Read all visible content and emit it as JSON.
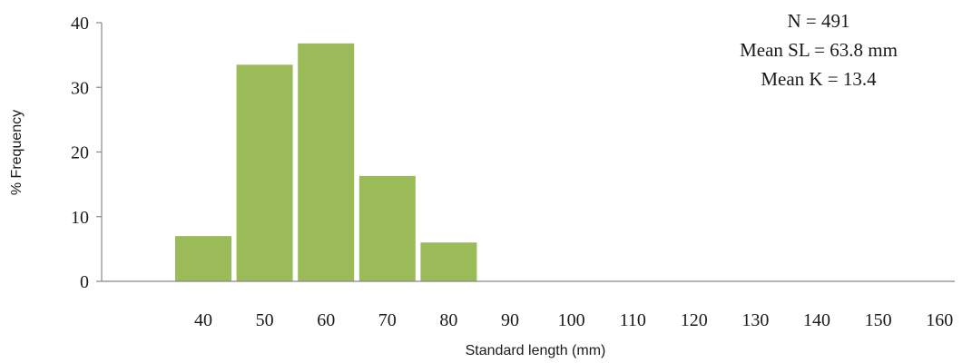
{
  "chart_data": {
    "type": "bar",
    "categories": [
      "40",
      "50",
      "60",
      "70",
      "80",
      "90",
      "100",
      "110",
      "120",
      "130",
      "140",
      "150",
      "160"
    ],
    "values": [
      7,
      33.5,
      36.8,
      16.3,
      6,
      0,
      0,
      0,
      0,
      0,
      0,
      0,
      0
    ],
    "title": "",
    "xlabel": "Standard length (mm)",
    "ylabel": "% Frequency",
    "ylim": [
      0,
      40
    ],
    "yticks": [
      "0",
      "10",
      "20",
      "30",
      "40"
    ],
    "grid": false,
    "legend": "none",
    "bar_color": "#9bbb59",
    "annotations": [
      "N = 491",
      "Mean SL = 63.8 mm",
      "Mean K = 13.4"
    ]
  }
}
